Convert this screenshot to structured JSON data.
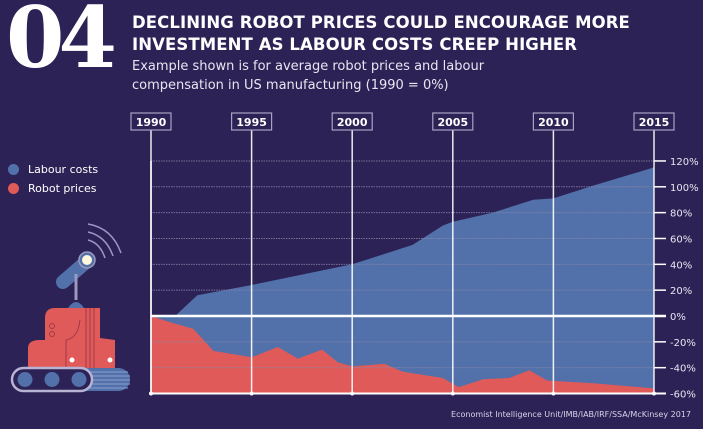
{
  "header": {
    "number": "04",
    "title_line1": "DECLINING ROBOT PRICES COULD ENCOURAGE MORE",
    "title_line2": "INVESTMENT AS LABOUR COSTS CREEP HIGHER",
    "subtitle_line1": "Example shown is for average robot prices and labour",
    "subtitle_line2": "compensation in US manufacturing (1990 = 0%)"
  },
  "source": "Economist Intelligence Unit/IMB/IAB/IRF/SSA/McKinsey 2017",
  "colors": {
    "background": "#2c2255",
    "labour": "#5271aa",
    "robot": "#df5a58",
    "grid": "#8c86aa",
    "text": "#ffffff"
  },
  "chart_data": {
    "type": "area",
    "title": "Declining robot prices could encourage more investment as labour costs creep higher",
    "xlabel": "",
    "ylabel": "",
    "xlim": [
      1990,
      2015
    ],
    "ylim": [
      -60,
      120
    ],
    "x_ticks": [
      "1990",
      "1995",
      "2000",
      "2005",
      "2010",
      "2015"
    ],
    "y_ticks": [
      {
        "value": 120,
        "label": "120%"
      },
      {
        "value": 100,
        "label": "100%"
      },
      {
        "value": 80,
        "label": "80%"
      },
      {
        "value": 60,
        "label": "60%"
      },
      {
        "value": 40,
        "label": "40%"
      },
      {
        "value": 20,
        "label": "20%"
      },
      {
        "value": 0,
        "label": "0%"
      },
      {
        "value": -20,
        "label": "-20%"
      },
      {
        "value": -40,
        "label": "-40%"
      },
      {
        "value": -60,
        "label": "-60%"
      }
    ],
    "legend_position": "left",
    "grid": true,
    "series": [
      {
        "name": "Labour costs",
        "color": "#5271aa",
        "points": [
          [
            1990,
            0
          ],
          [
            1991.2,
            0
          ],
          [
            1992.3,
            16
          ],
          [
            1995,
            24
          ],
          [
            2000,
            40
          ],
          [
            2001,
            45
          ],
          [
            2003,
            55
          ],
          [
            2004.5,
            70
          ],
          [
            2005,
            73
          ],
          [
            2007,
            80
          ],
          [
            2009,
            90
          ],
          [
            2010,
            91
          ],
          [
            2012,
            101
          ],
          [
            2015,
            115
          ]
        ]
      },
      {
        "name": "Robot prices",
        "color": "#df5a58",
        "points": [
          [
            1990,
            0
          ],
          [
            1991,
            -5
          ],
          [
            1992.1,
            -10
          ],
          [
            1993.1,
            -27
          ],
          [
            1995,
            -32
          ],
          [
            1996.3,
            -24
          ],
          [
            1997.3,
            -33
          ],
          [
            1998.5,
            -26
          ],
          [
            1999.3,
            -36
          ],
          [
            2000,
            -39
          ],
          [
            2001.6,
            -37
          ],
          [
            2002.5,
            -43
          ],
          [
            2004.5,
            -48
          ],
          [
            2005.3,
            -55
          ],
          [
            2006.5,
            -49
          ],
          [
            2007.8,
            -48
          ],
          [
            2008.8,
            -42
          ],
          [
            2009.7,
            -50
          ],
          [
            2012,
            -52
          ],
          [
            2015,
            -56
          ]
        ]
      }
    ]
  }
}
